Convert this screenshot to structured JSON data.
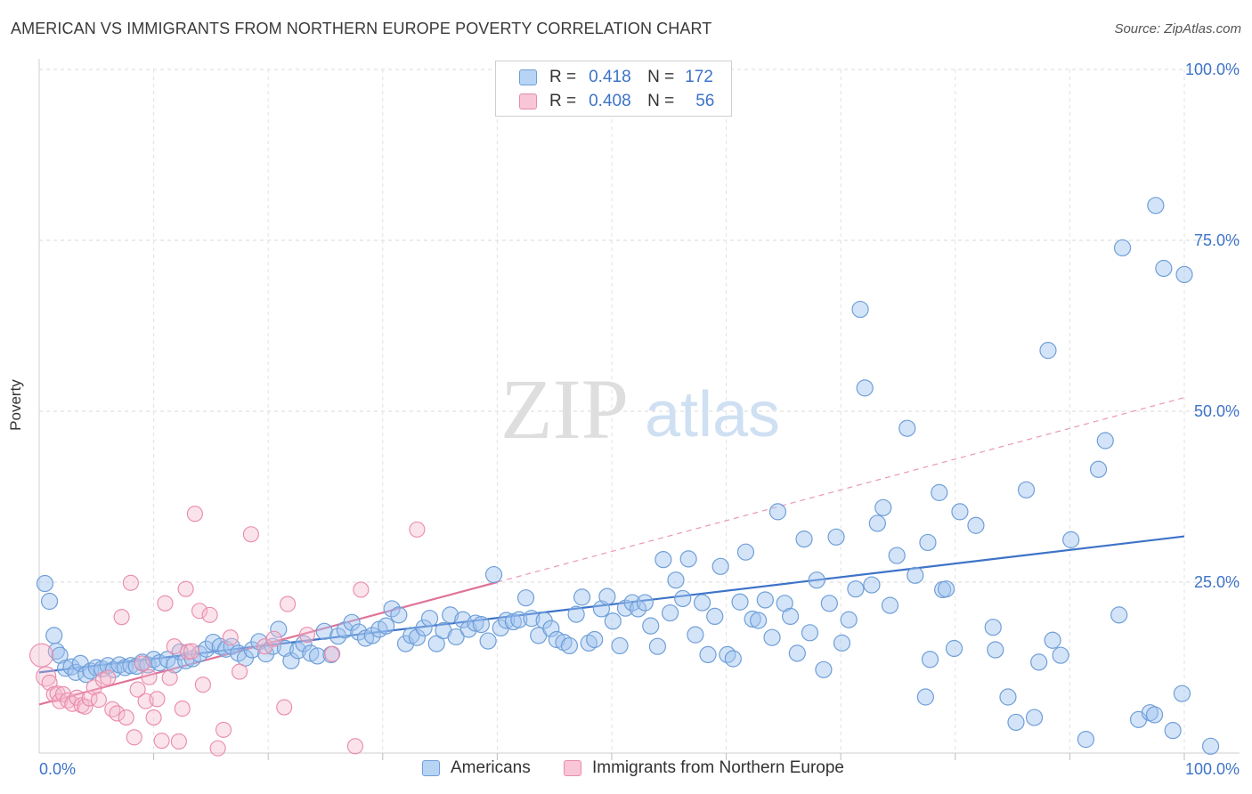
{
  "title": "AMERICAN VS IMMIGRANTS FROM NORTHERN EUROPE POVERTY CORRELATION CHART",
  "source": "Source: ZipAtlas.com",
  "watermark": {
    "zip": "ZIP",
    "atlas": "atlas"
  },
  "legend": {
    "r_label": "R =",
    "n_label": "N =",
    "series": [
      {
        "name": "Americans",
        "r": "0.418",
        "n": "172",
        "color": "#6f9fd8",
        "fill": "#b8d4f5"
      },
      {
        "name": "Immigrants from Northern Europe",
        "r": "0.408",
        "n": "56",
        "color": "#e98aa9",
        "fill": "#f8c6d6"
      }
    ]
  },
  "chart_data": {
    "type": "scatter",
    "title": "AMERICAN VS IMMIGRANTS FROM NORTHERN EUROPE POVERTY CORRELATION CHART",
    "xlabel": "",
    "ylabel": "Poverty",
    "xlim": [
      0,
      100
    ],
    "ylim": [
      0,
      100
    ],
    "x_tick_labels": [
      "0.0%",
      "100.0%"
    ],
    "y_tick_labels": [
      "25.0%",
      "50.0%",
      "75.0%",
      "100.0%"
    ],
    "y_ticks": [
      25,
      50,
      75,
      100
    ],
    "grid": true,
    "series": [
      {
        "name": "Americans",
        "color": "#3d73c8",
        "trend": {
          "x": [
            0,
            100
          ],
          "y": [
            11.8,
            31.7
          ],
          "style": "solid"
        },
        "points": [
          [
            0.5,
            24.8
          ],
          [
            0.9,
            22.2
          ],
          [
            1.3,
            17.2
          ],
          [
            1.5,
            14.9
          ],
          [
            1.8,
            14.3
          ],
          [
            2.3,
            12.4
          ],
          [
            2.8,
            12.6
          ],
          [
            3.2,
            11.8
          ],
          [
            3.6,
            13.1
          ],
          [
            4.1,
            11.5
          ],
          [
            4.5,
            12.0
          ],
          [
            5.0,
            12.5
          ],
          [
            5.5,
            12.3
          ],
          [
            6.0,
            12.8
          ],
          [
            6.5,
            12.2
          ],
          [
            7.0,
            12.9
          ],
          [
            7.5,
            12.5
          ],
          [
            8.0,
            12.8
          ],
          [
            8.5,
            12.7
          ],
          [
            9.0,
            13.3
          ],
          [
            9.5,
            12.9
          ],
          [
            10.0,
            13.7
          ],
          [
            10.5,
            13.2
          ],
          [
            11.2,
            13.7
          ],
          [
            11.8,
            12.9
          ],
          [
            12.3,
            14.8
          ],
          [
            12.8,
            13.5
          ],
          [
            13.4,
            13.8
          ],
          [
            14.0,
            14.5
          ],
          [
            14.6,
            15.2
          ],
          [
            15.2,
            16.2
          ],
          [
            15.8,
            15.6
          ],
          [
            16.3,
            15.2
          ],
          [
            16.8,
            15.6
          ],
          [
            17.4,
            14.6
          ],
          [
            18.0,
            13.9
          ],
          [
            18.6,
            15.1
          ],
          [
            19.2,
            16.3
          ],
          [
            19.8,
            14.5
          ],
          [
            20.4,
            15.6
          ],
          [
            20.9,
            18.1
          ],
          [
            21.5,
            15.3
          ],
          [
            22.0,
            13.5
          ],
          [
            22.6,
            15.0
          ],
          [
            23.1,
            16.0
          ],
          [
            23.7,
            14.6
          ],
          [
            24.3,
            14.2
          ],
          [
            24.9,
            17.8
          ],
          [
            25.5,
            14.4
          ],
          [
            26.1,
            17.1
          ],
          [
            26.7,
            18.0
          ],
          [
            27.3,
            19.1
          ],
          [
            27.9,
            17.7
          ],
          [
            28.5,
            16.8
          ],
          [
            29.1,
            17.2
          ],
          [
            29.7,
            18.1
          ],
          [
            30.3,
            18.6
          ],
          [
            30.8,
            21.1
          ],
          [
            31.4,
            20.2
          ],
          [
            32.0,
            16.0
          ],
          [
            32.5,
            17.2
          ],
          [
            33.0,
            16.9
          ],
          [
            33.6,
            18.3
          ],
          [
            34.1,
            19.7
          ],
          [
            34.7,
            16.0
          ],
          [
            35.3,
            17.9
          ],
          [
            35.9,
            20.2
          ],
          [
            36.4,
            17.0
          ],
          [
            37.0,
            19.5
          ],
          [
            37.5,
            18.1
          ],
          [
            38.1,
            19.0
          ],
          [
            38.6,
            18.8
          ],
          [
            39.2,
            16.4
          ],
          [
            39.7,
            26.1
          ],
          [
            40.3,
            18.3
          ],
          [
            40.8,
            19.4
          ],
          [
            41.4,
            19.2
          ],
          [
            41.9,
            19.5
          ],
          [
            42.5,
            22.7
          ],
          [
            43.0,
            19.7
          ],
          [
            43.6,
            17.2
          ],
          [
            44.1,
            19.4
          ],
          [
            44.7,
            18.2
          ],
          [
            45.2,
            16.6
          ],
          [
            45.8,
            16.2
          ],
          [
            46.3,
            15.7
          ],
          [
            46.9,
            20.3
          ],
          [
            47.4,
            22.8
          ],
          [
            48.0,
            16.1
          ],
          [
            48.5,
            16.6
          ],
          [
            49.1,
            21.1
          ],
          [
            49.6,
            22.9
          ],
          [
            50.1,
            19.3
          ],
          [
            50.7,
            15.7
          ],
          [
            51.2,
            21.2
          ],
          [
            51.8,
            22.0
          ],
          [
            52.3,
            21.1
          ],
          [
            52.9,
            22.0
          ],
          [
            53.4,
            18.6
          ],
          [
            54.0,
            15.6
          ],
          [
            54.5,
            28.3
          ],
          [
            55.1,
            20.5
          ],
          [
            55.6,
            25.3
          ],
          [
            56.2,
            22.6
          ],
          [
            56.7,
            28.4
          ],
          [
            57.3,
            17.3
          ],
          [
            57.9,
            22.0
          ],
          [
            58.4,
            14.4
          ],
          [
            59.0,
            20.0
          ],
          [
            59.5,
            27.3
          ],
          [
            60.1,
            14.4
          ],
          [
            60.6,
            13.8
          ],
          [
            61.2,
            22.1
          ],
          [
            61.7,
            29.4
          ],
          [
            62.3,
            19.6
          ],
          [
            62.8,
            19.4
          ],
          [
            63.4,
            22.4
          ],
          [
            64.0,
            16.9
          ],
          [
            64.5,
            35.3
          ],
          [
            65.1,
            21.9
          ],
          [
            65.6,
            20.0
          ],
          [
            66.2,
            14.6
          ],
          [
            66.8,
            31.3
          ],
          [
            67.3,
            17.6
          ],
          [
            67.9,
            25.3
          ],
          [
            68.5,
            12.2
          ],
          [
            69.0,
            21.9
          ],
          [
            69.6,
            31.6
          ],
          [
            70.1,
            16.1
          ],
          [
            70.7,
            19.5
          ],
          [
            71.3,
            24.0
          ],
          [
            71.7,
            64.9
          ],
          [
            72.1,
            53.4
          ],
          [
            72.7,
            24.6
          ],
          [
            73.2,
            33.6
          ],
          [
            73.7,
            35.9
          ],
          [
            74.3,
            21.6
          ],
          [
            74.9,
            28.9
          ],
          [
            75.8,
            47.5
          ],
          [
            76.5,
            26.0
          ],
          [
            77.4,
            8.2
          ],
          [
            77.6,
            30.8
          ],
          [
            77.8,
            13.7
          ],
          [
            78.6,
            38.1
          ],
          [
            78.9,
            23.9
          ],
          [
            79.2,
            24.0
          ],
          [
            79.9,
            15.3
          ],
          [
            80.4,
            35.3
          ],
          [
            81.8,
            33.3
          ],
          [
            83.3,
            18.4
          ],
          [
            83.5,
            15.1
          ],
          [
            84.6,
            8.2
          ],
          [
            85.3,
            4.5
          ],
          [
            86.2,
            38.5
          ],
          [
            86.9,
            5.2
          ],
          [
            87.3,
            13.3
          ],
          [
            88.1,
            58.9
          ],
          [
            88.5,
            16.5
          ],
          [
            89.2,
            14.3
          ],
          [
            90.1,
            31.2
          ],
          [
            91.4,
            2.0
          ],
          [
            92.5,
            41.5
          ],
          [
            93.1,
            45.7
          ],
          [
            94.3,
            20.2
          ],
          [
            94.6,
            73.9
          ],
          [
            96.0,
            4.9
          ],
          [
            97.0,
            5.9
          ],
          [
            97.4,
            5.6
          ],
          [
            97.5,
            80.1
          ],
          [
            98.2,
            70.9
          ],
          [
            99.0,
            3.3
          ],
          [
            99.8,
            8.7
          ],
          [
            100.0,
            70.0
          ],
          [
            102.3,
            1.0
          ]
        ]
      },
      {
        "name": "Immigrants from Northern Europe",
        "color": "#e07398",
        "trend": {
          "x": [
            0,
            40
          ],
          "y": [
            7.1,
            25.0
          ],
          "style": "solid",
          "extended_to": [
            100,
            52.0
          ],
          "extended_style": "dashed"
        },
        "points": [
          [
            0.2,
            14.3
          ],
          [
            0.6,
            11.2
          ],
          [
            0.9,
            10.3
          ],
          [
            1.3,
            8.6
          ],
          [
            1.6,
            8.7
          ],
          [
            1.8,
            7.6
          ],
          [
            2.1,
            8.6
          ],
          [
            2.5,
            7.7
          ],
          [
            2.9,
            7.2
          ],
          [
            3.3,
            8.1
          ],
          [
            3.7,
            7.0
          ],
          [
            4.0,
            6.8
          ],
          [
            4.4,
            8.0
          ],
          [
            4.8,
            9.6
          ],
          [
            5.2,
            7.8
          ],
          [
            5.6,
            10.7
          ],
          [
            6.0,
            11.0
          ],
          [
            6.4,
            6.4
          ],
          [
            6.8,
            5.8
          ],
          [
            7.2,
            19.9
          ],
          [
            7.6,
            5.2
          ],
          [
            8.0,
            24.9
          ],
          [
            8.3,
            2.3
          ],
          [
            8.6,
            9.3
          ],
          [
            9.0,
            13.1
          ],
          [
            9.3,
            7.6
          ],
          [
            9.6,
            11.1
          ],
          [
            10.0,
            5.2
          ],
          [
            10.3,
            7.9
          ],
          [
            10.7,
            1.8
          ],
          [
            11.0,
            21.9
          ],
          [
            11.4,
            11.0
          ],
          [
            11.8,
            15.6
          ],
          [
            12.2,
            1.7
          ],
          [
            12.5,
            6.5
          ],
          [
            12.8,
            24.0
          ],
          [
            13.0,
            14.8
          ],
          [
            13.3,
            14.9
          ],
          [
            13.6,
            35.0
          ],
          [
            14.0,
            20.8
          ],
          [
            14.3,
            10.0
          ],
          [
            14.9,
            20.2
          ],
          [
            15.6,
            0.7
          ],
          [
            16.1,
            3.4
          ],
          [
            16.7,
            16.9
          ],
          [
            17.5,
            11.9
          ],
          [
            18.5,
            32.0
          ],
          [
            19.7,
            15.6
          ],
          [
            20.5,
            16.7
          ],
          [
            21.4,
            6.7
          ],
          [
            21.7,
            21.8
          ],
          [
            23.4,
            17.3
          ],
          [
            25.6,
            14.5
          ],
          [
            27.6,
            1.0
          ],
          [
            28.1,
            23.9
          ],
          [
            33.0,
            32.7
          ]
        ]
      }
    ]
  }
}
